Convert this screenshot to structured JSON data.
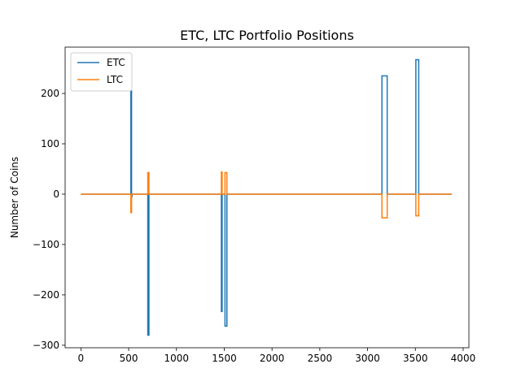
{
  "chart_data": {
    "type": "line",
    "title": "ETC, LTC Portfolio Positions",
    "xlabel": "",
    "ylabel": "Number of Coins",
    "xlim": [
      -165,
      4060
    ],
    "ylim": [
      -305,
      292
    ],
    "xticks": [
      0,
      500,
      1000,
      1500,
      2000,
      2500,
      3000,
      3500,
      4000
    ],
    "yticks": [
      -300,
      -200,
      -100,
      0,
      100,
      200
    ],
    "x_tick_labels": [
      "0",
      "500",
      "1000",
      "1500",
      "2000",
      "2500",
      "3000",
      "3500",
      "4000"
    ],
    "y_tick_labels": [
      "−300",
      "−200",
      "−100",
      "0",
      "100",
      "200"
    ],
    "grid": false,
    "legend_position": "top-left",
    "series": [
      {
        "name": "ETC",
        "color": "#1f77b4",
        "points": [
          [
            0,
            0
          ],
          [
            523,
            0
          ],
          [
            523,
            205
          ],
          [
            530,
            205
          ],
          [
            530,
            -5
          ],
          [
            535,
            -5
          ],
          [
            535,
            0
          ],
          [
            700,
            0
          ],
          [
            700,
            -280
          ],
          [
            712,
            -280
          ],
          [
            712,
            0
          ],
          [
            1470,
            0
          ],
          [
            1470,
            -233
          ],
          [
            1478,
            -233
          ],
          [
            1478,
            0
          ],
          [
            1508,
            0
          ],
          [
            1508,
            -262
          ],
          [
            1528,
            -262
          ],
          [
            1528,
            0
          ],
          [
            3150,
            0
          ],
          [
            3150,
            235
          ],
          [
            3205,
            235
          ],
          [
            3205,
            0
          ],
          [
            3505,
            0
          ],
          [
            3505,
            267
          ],
          [
            3535,
            267
          ],
          [
            3535,
            0
          ],
          [
            3880,
            0
          ]
        ]
      },
      {
        "name": "LTC",
        "color": "#ff7f0e",
        "points": [
          [
            0,
            0
          ],
          [
            523,
            0
          ],
          [
            523,
            -37
          ],
          [
            530,
            -37
          ],
          [
            530,
            0
          ],
          [
            700,
            0
          ],
          [
            700,
            43
          ],
          [
            712,
            43
          ],
          [
            712,
            0
          ],
          [
            1470,
            0
          ],
          [
            1470,
            44
          ],
          [
            1478,
            44
          ],
          [
            1478,
            0
          ],
          [
            1508,
            0
          ],
          [
            1508,
            43
          ],
          [
            1528,
            43
          ],
          [
            1528,
            0
          ],
          [
            3150,
            0
          ],
          [
            3150,
            -47
          ],
          [
            3205,
            -47
          ],
          [
            3205,
            0
          ],
          [
            3505,
            0
          ],
          [
            3505,
            -43
          ],
          [
            3535,
            -43
          ],
          [
            3535,
            0
          ],
          [
            3880,
            0
          ]
        ]
      }
    ]
  }
}
